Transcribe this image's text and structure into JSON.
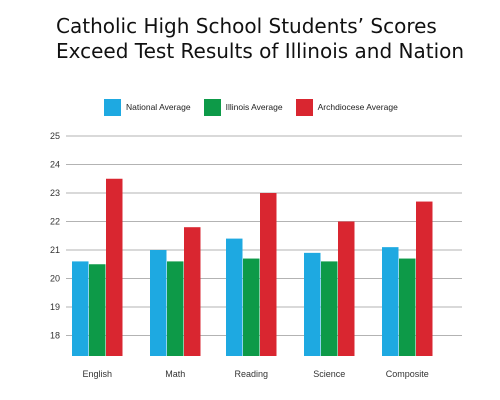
{
  "chart_data": {
    "type": "bar",
    "title_lines": [
      "Catholic High School Students’ Scores",
      "Exceed Test Results of Illinois and Nation"
    ],
    "categories": [
      "English",
      "Math",
      "Reading",
      "Science",
      "Composite"
    ],
    "series": [
      {
        "name": "National Average",
        "color": "#1ea9e1",
        "values": [
          20.6,
          21.0,
          21.4,
          20.9,
          21.1
        ]
      },
      {
        "name": "Illinois Average",
        "color": "#0d9a48",
        "values": [
          20.5,
          20.6,
          20.7,
          20.6,
          20.7
        ]
      },
      {
        "name": "Archdiocese Average",
        "color": "#d92630",
        "values": [
          23.5,
          21.8,
          23.0,
          22.0,
          22.7
        ]
      }
    ],
    "y_ticks": [
      "18",
      "19",
      "20",
      "21",
      "22",
      "23",
      "24",
      "25"
    ],
    "ylim": [
      17.3,
      25
    ],
    "grid": true,
    "legend_position": "top"
  }
}
